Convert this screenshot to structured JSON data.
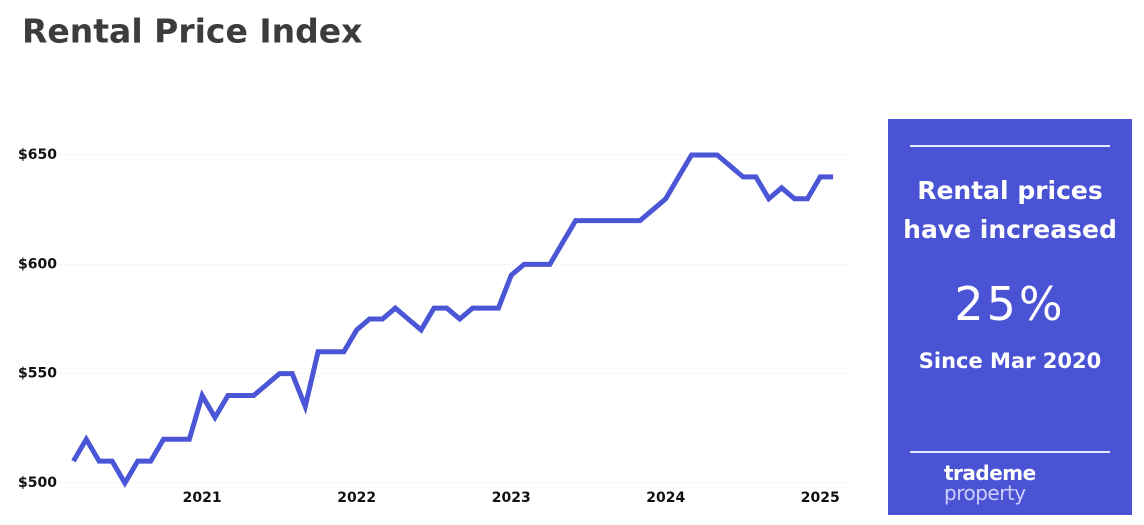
{
  "chart_data": {
    "type": "line",
    "title": "Rental Price Index",
    "x": [
      2020.167,
      2020.25,
      2020.333,
      2020.417,
      2020.5,
      2020.583,
      2020.667,
      2020.75,
      2020.833,
      2020.917,
      2021.0,
      2021.083,
      2021.167,
      2021.25,
      2021.333,
      2021.417,
      2021.5,
      2021.583,
      2021.667,
      2021.75,
      2021.833,
      2021.917,
      2022.0,
      2022.083,
      2022.167,
      2022.25,
      2022.333,
      2022.417,
      2022.5,
      2022.583,
      2022.667,
      2022.75,
      2022.833,
      2022.917,
      2023.0,
      2023.083,
      2023.167,
      2023.25,
      2023.333,
      2023.417,
      2023.5,
      2023.583,
      2023.667,
      2023.75,
      2023.833,
      2023.917,
      2024.0,
      2024.083,
      2024.167,
      2024.25,
      2024.333,
      2024.417,
      2024.5,
      2024.583,
      2024.667,
      2024.75,
      2024.833,
      2024.917,
      2025.0,
      2025.083
    ],
    "series": [
      {
        "name": "Rental Price Index",
        "color": "#4a56d6",
        "values": [
          510,
          520,
          510,
          510,
          500,
          510,
          510,
          520,
          520,
          520,
          540,
          530,
          540,
          540,
          540,
          545,
          550,
          550,
          535,
          560,
          560,
          560,
          570,
          575,
          575,
          580,
          575,
          570,
          580,
          580,
          575,
          580,
          580,
          580,
          595,
          600,
          600,
          600,
          610,
          620,
          620,
          620,
          620,
          620,
          620,
          625,
          630,
          640,
          650,
          650,
          650,
          645,
          640,
          640,
          630,
          635,
          630,
          630,
          640,
          640
        ]
      }
    ],
    "xlim": [
      2020.08,
      2025.16
    ],
    "xticks": [
      2021,
      2022,
      2023,
      2024,
      2025
    ],
    "ylim": [
      500,
      650
    ],
    "yticks": [
      {
        "value": 500,
        "label": "$500"
      },
      {
        "value": 550,
        "label": "$550"
      },
      {
        "value": 600,
        "label": "$600"
      },
      {
        "value": 650,
        "label": "$650"
      }
    ],
    "grid": true
  },
  "panel": {
    "message": "Rental prices have increased",
    "value": "25%",
    "since": "Since Mar 2020",
    "logo": [
      "trademe",
      "property"
    ]
  }
}
